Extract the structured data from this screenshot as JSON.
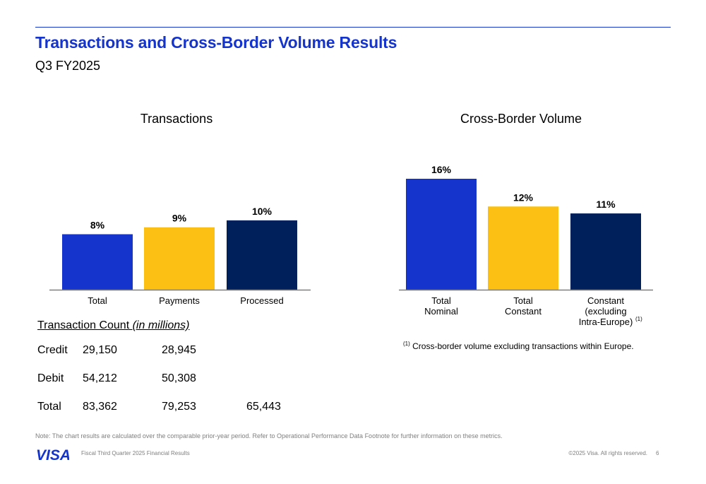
{
  "header": {
    "title": "Transactions and Cross-Border Volume Results",
    "subtitle": "Q3 FY2025"
  },
  "chart_data": [
    {
      "type": "bar",
      "title": "Transactions",
      "categories": [
        "Total",
        "Payments",
        "Processed"
      ],
      "values": [
        8,
        9,
        10
      ],
      "data_labels": [
        "8%",
        "9%",
        "10%"
      ],
      "colors": [
        "#1434CB",
        "#FCC015",
        "#00205B"
      ],
      "ylim": [
        0,
        16
      ]
    },
    {
      "type": "bar",
      "title": "Cross-Border Volume",
      "categories": [
        [
          "Total",
          "Nominal"
        ],
        [
          "Total",
          "Constant"
        ],
        [
          "Constant",
          "(excluding",
          "Intra-Europe)"
        ]
      ],
      "category_superscript": [
        null,
        null,
        "(1)"
      ],
      "values": [
        16,
        12,
        11
      ],
      "data_labels": [
        "16%",
        "12%",
        "11%"
      ],
      "colors": [
        "#1434CB",
        "#FCC015",
        "#00205B"
      ],
      "ylim": [
        0,
        16
      ]
    }
  ],
  "transaction_count": {
    "heading": "Transaction Count ",
    "heading_unit": "(in millions)",
    "rows": [
      {
        "label": "Credit",
        "total": "29,150",
        "payments": "28,945",
        "processed": ""
      },
      {
        "label": "Debit",
        "total": "54,212",
        "payments": "50,308",
        "processed": ""
      },
      {
        "label": "Total",
        "total": "83,362",
        "payments": "79,253",
        "processed": "65,443"
      }
    ]
  },
  "footnote": {
    "marker": "(1)",
    "text": " Cross-border volume excluding transactions within Europe."
  },
  "note": "Note: The chart results are calculated over the comparable prior-year period. Refer to Operational Performance Data Footnote for further information on these metrics.",
  "footer": {
    "logo_text": "VISA",
    "left": "Fiscal Third Quarter 2025 Financial Results",
    "right": "©2025 Visa. All rights reserved.",
    "page": "6"
  },
  "colors": {
    "accent": "#1434CB",
    "gold": "#FCC015",
    "navy": "#00205B"
  }
}
